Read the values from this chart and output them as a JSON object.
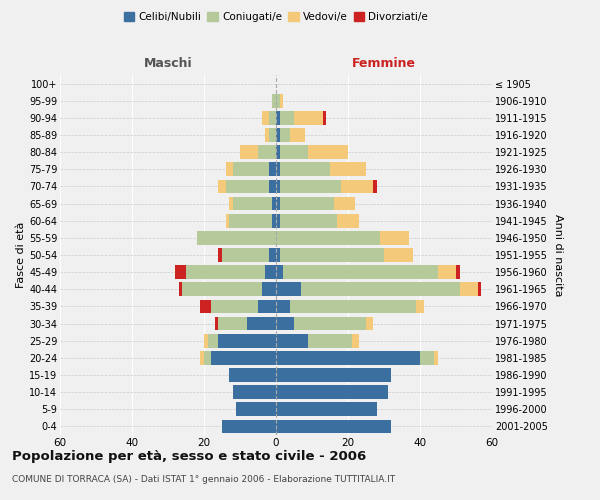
{
  "age_groups": [
    "0-4",
    "5-9",
    "10-14",
    "15-19",
    "20-24",
    "25-29",
    "30-34",
    "35-39",
    "40-44",
    "45-49",
    "50-54",
    "55-59",
    "60-64",
    "65-69",
    "70-74",
    "75-79",
    "80-84",
    "85-89",
    "90-94",
    "95-99",
    "100+"
  ],
  "birth_years": [
    "2001-2005",
    "1996-2000",
    "1991-1995",
    "1986-1990",
    "1981-1985",
    "1976-1980",
    "1971-1975",
    "1966-1970",
    "1961-1965",
    "1956-1960",
    "1951-1955",
    "1946-1950",
    "1941-1945",
    "1936-1940",
    "1931-1935",
    "1926-1930",
    "1921-1925",
    "1916-1920",
    "1911-1915",
    "1906-1910",
    "≤ 1905"
  ],
  "male": {
    "celibi": [
      15,
      11,
      12,
      13,
      18,
      16,
      8,
      5,
      4,
      3,
      2,
      0,
      1,
      1,
      2,
      2,
      0,
      0,
      0,
      0,
      0
    ],
    "coniugati": [
      0,
      0,
      0,
      0,
      2,
      3,
      8,
      13,
      22,
      22,
      13,
      22,
      12,
      11,
      12,
      10,
      5,
      2,
      2,
      1,
      0
    ],
    "vedovi": [
      0,
      0,
      0,
      0,
      1,
      1,
      0,
      0,
      0,
      0,
      0,
      0,
      1,
      1,
      2,
      2,
      5,
      1,
      2,
      0,
      0
    ],
    "divorziati": [
      0,
      0,
      0,
      0,
      0,
      0,
      1,
      3,
      1,
      3,
      1,
      0,
      0,
      0,
      0,
      0,
      0,
      0,
      0,
      0,
      0
    ]
  },
  "female": {
    "nubili": [
      32,
      28,
      31,
      32,
      40,
      9,
      5,
      4,
      7,
      2,
      1,
      0,
      1,
      1,
      1,
      1,
      1,
      1,
      1,
      0,
      0
    ],
    "coniugate": [
      0,
      0,
      0,
      0,
      4,
      12,
      20,
      35,
      44,
      43,
      29,
      29,
      16,
      15,
      17,
      14,
      8,
      3,
      4,
      1,
      0
    ],
    "vedove": [
      0,
      0,
      0,
      0,
      1,
      2,
      2,
      2,
      5,
      5,
      8,
      8,
      6,
      6,
      9,
      10,
      11,
      4,
      8,
      1,
      0
    ],
    "divorziate": [
      0,
      0,
      0,
      0,
      0,
      0,
      0,
      0,
      1,
      1,
      0,
      0,
      0,
      0,
      1,
      0,
      0,
      0,
      1,
      0,
      0
    ]
  },
  "colors": {
    "celibi": "#3b6fa0",
    "coniugati": "#b5c99a",
    "vedovi": "#f5c97a",
    "divorziati": "#cc2222"
  },
  "xlim": 60,
  "title": "Popolazione per età, sesso e stato civile - 2006",
  "subtitle": "COMUNE DI TORRACA (SA) - Dati ISTAT 1° gennaio 2006 - Elaborazione TUTTITALIA.IT",
  "xlabel_left": "Maschi",
  "xlabel_right": "Femmine",
  "ylabel_left": "Fasce di età",
  "ylabel_right": "Anni di nascita",
  "legend_labels": [
    "Celibi/Nubili",
    "Coniugati/e",
    "Vedovi/e",
    "Divorziati/e"
  ],
  "bg_color": "#f0f0f0"
}
